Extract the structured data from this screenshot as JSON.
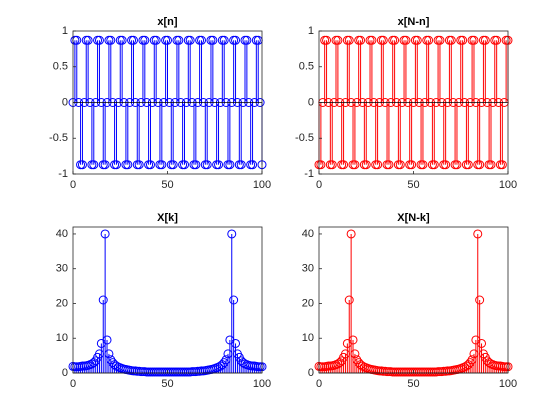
{
  "chart_data": [
    {
      "type": "stem",
      "title": "x[n]",
      "color": "#0000ff",
      "xlim": [
        0,
        100
      ],
      "xticks": [
        0,
        50,
        100
      ],
      "ylim": [
        -1,
        1
      ],
      "yticks": [
        -1,
        -0.5,
        0,
        0.5,
        1
      ],
      "x": [
        0,
        1,
        2,
        3,
        4,
        5,
        6,
        7,
        8,
        9,
        10,
        11,
        12,
        13,
        14,
        15,
        16,
        17,
        18,
        19,
        20,
        21,
        22,
        23,
        24,
        25,
        26,
        27,
        28,
        29,
        30,
        31,
        32,
        33,
        34,
        35,
        36,
        37,
        38,
        39,
        40,
        41,
        42,
        43,
        44,
        45,
        46,
        47,
        48,
        49,
        50,
        51,
        52,
        53,
        54,
        55,
        56,
        57,
        58,
        59,
        60,
        61,
        62,
        63,
        64,
        65,
        66,
        67,
        68,
        69,
        70,
        71,
        72,
        73,
        74,
        75,
        76,
        77,
        78,
        79,
        80,
        81,
        82,
        83,
        84,
        85,
        86,
        87,
        88,
        89,
        90,
        91,
        92,
        93,
        94,
        95,
        96,
        97,
        98,
        99,
        100
      ],
      "values": [
        0,
        0.87,
        0.87,
        0,
        -0.87,
        -0.87,
        0,
        0.87,
        0.87,
        0,
        -0.87,
        -0.87,
        0,
        0.87,
        0.87,
        0,
        -0.87,
        -0.87,
        0,
        0.87,
        0.87,
        0,
        -0.87,
        -0.87,
        0,
        0.87,
        0.87,
        0,
        -0.87,
        -0.87,
        0,
        0.87,
        0.87,
        0,
        -0.87,
        -0.87,
        0,
        0.87,
        0.87,
        0,
        -0.87,
        -0.87,
        0,
        0.87,
        0.87,
        0,
        -0.87,
        -0.87,
        0,
        0.87,
        0.87,
        0,
        -0.87,
        -0.87,
        0,
        0.87,
        0.87,
        0,
        -0.87,
        -0.87,
        0,
        0.87,
        0.87,
        0,
        -0.87,
        -0.87,
        0,
        0.87,
        0.87,
        0,
        -0.87,
        -0.87,
        0,
        0.87,
        0.87,
        0,
        -0.87,
        -0.87,
        0,
        0.87,
        0.87,
        0,
        -0.87,
        -0.87,
        0,
        0.87,
        0.87,
        0,
        -0.87,
        -0.87,
        0,
        0.87,
        0.87,
        0,
        -0.87,
        -0.87,
        0,
        0.87,
        0.87,
        0,
        -0.87
      ]
    },
    {
      "type": "stem",
      "title": "x[N-n]",
      "color": "#ff0000",
      "xlim": [
        0,
        100
      ],
      "xticks": [
        0,
        50,
        100
      ],
      "ylim": [
        -1,
        1
      ],
      "yticks": [
        -1,
        -0.5,
        0,
        0.5,
        1
      ],
      "x": [
        0,
        1,
        2,
        3,
        4,
        5,
        6,
        7,
        8,
        9,
        10,
        11,
        12,
        13,
        14,
        15,
        16,
        17,
        18,
        19,
        20,
        21,
        22,
        23,
        24,
        25,
        26,
        27,
        28,
        29,
        30,
        31,
        32,
        33,
        34,
        35,
        36,
        37,
        38,
        39,
        40,
        41,
        42,
        43,
        44,
        45,
        46,
        47,
        48,
        49,
        50,
        51,
        52,
        53,
        54,
        55,
        56,
        57,
        58,
        59,
        60,
        61,
        62,
        63,
        64,
        65,
        66,
        67,
        68,
        69,
        70,
        71,
        72,
        73,
        74,
        75,
        76,
        77,
        78,
        79,
        80,
        81,
        82,
        83,
        84,
        85,
        86,
        87,
        88,
        89,
        90,
        91,
        92,
        93,
        94,
        95,
        96,
        97,
        98,
        99,
        100
      ],
      "values": [
        -0.87,
        -0.87,
        0,
        0.87,
        0.87,
        0,
        -0.87,
        -0.87,
        0,
        0.87,
        0.87,
        0,
        -0.87,
        -0.87,
        0,
        0.87,
        0.87,
        0,
        -0.87,
        -0.87,
        0,
        0.87,
        0.87,
        0,
        -0.87,
        -0.87,
        0,
        0.87,
        0.87,
        0,
        -0.87,
        -0.87,
        0,
        0.87,
        0.87,
        0,
        -0.87,
        -0.87,
        0,
        0.87,
        0.87,
        0,
        -0.87,
        -0.87,
        0,
        0.87,
        0.87,
        0,
        -0.87,
        -0.87,
        0,
        0.87,
        0.87,
        0,
        -0.87,
        -0.87,
        0,
        0.87,
        0.87,
        0,
        -0.87,
        -0.87,
        0,
        0.87,
        0.87,
        0,
        -0.87,
        -0.87,
        0,
        0.87,
        0.87,
        0,
        -0.87,
        -0.87,
        0,
        0.87,
        0.87,
        0,
        -0.87,
        -0.87,
        0,
        0.87,
        0.87,
        0,
        -0.87,
        -0.87,
        0,
        0.87,
        0.87,
        0,
        -0.87,
        -0.87,
        0,
        0.87,
        0.87,
        0,
        -0.87,
        -0.87,
        0,
        0.87,
        0.87
      ]
    },
    {
      "type": "stem",
      "title": "X[k]",
      "color": "#0000ff",
      "xlim": [
        0,
        100
      ],
      "xticks": [
        0,
        50,
        100
      ],
      "ylim": [
        0,
        42
      ],
      "yticks": [
        0,
        10,
        20,
        30,
        40
      ],
      "x": [
        0,
        1,
        2,
        3,
        4,
        5,
        6,
        7,
        8,
        9,
        10,
        11,
        12,
        13,
        14,
        15,
        16,
        17,
        18,
        19,
        20,
        21,
        22,
        23,
        24,
        25,
        26,
        27,
        28,
        29,
        30,
        31,
        32,
        33,
        34,
        35,
        36,
        37,
        38,
        39,
        40,
        41,
        42,
        43,
        44,
        45,
        46,
        47,
        48,
        49,
        50,
        51,
        52,
        53,
        54,
        55,
        56,
        57,
        58,
        59,
        60,
        61,
        62,
        63,
        64,
        65,
        66,
        67,
        68,
        69,
        70,
        71,
        72,
        73,
        74,
        75,
        76,
        77,
        78,
        79,
        80,
        81,
        82,
        83,
        84,
        85,
        86,
        87,
        88,
        89,
        90,
        91,
        92,
        93,
        94,
        95,
        96,
        97,
        98,
        99,
        100
      ],
      "values": [
        1.9,
        1.8,
        1.8,
        1.8,
        1.9,
        2,
        2,
        2.1,
        2.2,
        2.4,
        2.6,
        3,
        3.5,
        4.5,
        5.5,
        8.5,
        21,
        40,
        9.5,
        5.5,
        3.8,
        3,
        2.4,
        2,
        1.7,
        1.5,
        1.3,
        1.1,
        1,
        0.9,
        0.8,
        0.7,
        0.6,
        0.6,
        0.5,
        0.5,
        0.4,
        0.4,
        0.4,
        0.3,
        0.3,
        0.3,
        0.3,
        0.3,
        0.3,
        0.3,
        0.3,
        0.3,
        0.3,
        0.3,
        0.3,
        0.3,
        0.3,
        0.3,
        0.3,
        0.3,
        0.3,
        0.3,
        0.3,
        0.3,
        0.3,
        0.3,
        0.3,
        0.4,
        0.4,
        0.4,
        0.5,
        0.5,
        0.6,
        0.6,
        0.7,
        0.8,
        0.9,
        1,
        1.1,
        1.3,
        1.5,
        1.7,
        2,
        2.4,
        3,
        3.8,
        5.5,
        9.5,
        40,
        21,
        8.5,
        5.5,
        4.5,
        3.5,
        3,
        2.6,
        2.4,
        2.2,
        2.1,
        2,
        2,
        1.9,
        1.8,
        1.8,
        1.8
      ]
    },
    {
      "type": "stem",
      "title": "X[N-k]",
      "color": "#ff0000",
      "xlim": [
        0,
        100
      ],
      "xticks": [
        0,
        50,
        100
      ],
      "ylim": [
        0,
        42
      ],
      "yticks": [
        0,
        10,
        20,
        30,
        40
      ],
      "x": [
        0,
        1,
        2,
        3,
        4,
        5,
        6,
        7,
        8,
        9,
        10,
        11,
        12,
        13,
        14,
        15,
        16,
        17,
        18,
        19,
        20,
        21,
        22,
        23,
        24,
        25,
        26,
        27,
        28,
        29,
        30,
        31,
        32,
        33,
        34,
        35,
        36,
        37,
        38,
        39,
        40,
        41,
        42,
        43,
        44,
        45,
        46,
        47,
        48,
        49,
        50,
        51,
        52,
        53,
        54,
        55,
        56,
        57,
        58,
        59,
        60,
        61,
        62,
        63,
        64,
        65,
        66,
        67,
        68,
        69,
        70,
        71,
        72,
        73,
        74,
        75,
        76,
        77,
        78,
        79,
        80,
        81,
        82,
        83,
        84,
        85,
        86,
        87,
        88,
        89,
        90,
        91,
        92,
        93,
        94,
        95,
        96,
        97,
        98,
        99,
        100
      ],
      "values": [
        1.9,
        1.8,
        1.8,
        1.8,
        1.9,
        2,
        2,
        2.1,
        2.2,
        2.4,
        2.6,
        3,
        3.5,
        4.5,
        5.5,
        8.5,
        21,
        40,
        9.5,
        5.5,
        3.8,
        3,
        2.4,
        2,
        1.7,
        1.5,
        1.3,
        1.1,
        1,
        0.9,
        0.8,
        0.7,
        0.6,
        0.6,
        0.5,
        0.5,
        0.4,
        0.4,
        0.4,
        0.3,
        0.3,
        0.3,
        0.3,
        0.3,
        0.3,
        0.3,
        0.3,
        0.3,
        0.3,
        0.3,
        0.3,
        0.3,
        0.3,
        0.3,
        0.3,
        0.3,
        0.3,
        0.3,
        0.3,
        0.3,
        0.3,
        0.3,
        0.3,
        0.4,
        0.4,
        0.4,
        0.5,
        0.5,
        0.6,
        0.6,
        0.7,
        0.8,
        0.9,
        1,
        1.1,
        1.3,
        1.5,
        1.7,
        2,
        2.4,
        3,
        3.8,
        5.5,
        9.5,
        40,
        21,
        8.5,
        5.5,
        4.5,
        3.5,
        3,
        2.6,
        2.4,
        2.2,
        2.1,
        2,
        2,
        1.9,
        1.8,
        1.8,
        1.8
      ]
    }
  ]
}
